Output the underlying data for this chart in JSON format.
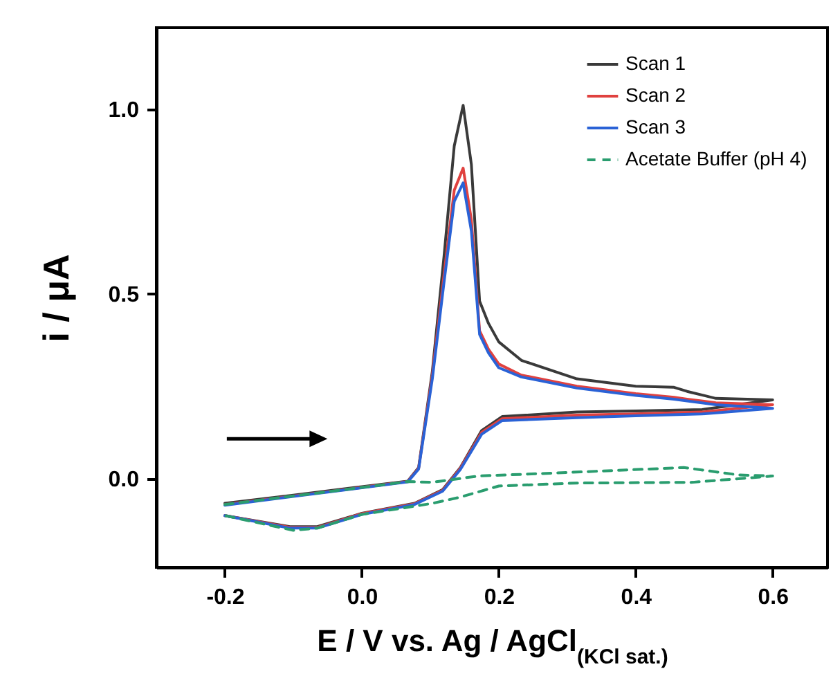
{
  "chart_data": {
    "type": "line",
    "xlabel": "E / V vs. Ag / AgCl$_{(KCl sat.)}$",
    "ylabel": "i / μA",
    "xlim": [
      -0.3,
      0.68
    ],
    "xticks": [
      -0.2,
      {
        "value": 0,
        "label": "0.0"
      },
      0.2,
      0.4,
      0.6
    ],
    "ylim": [
      -0.24,
      1.22
    ],
    "yticks": [
      {
        "value": 0,
        "label": "0.0"
      },
      0.5,
      {
        "value": 1,
        "label": "1.0"
      }
    ],
    "legend": "top right",
    "grid": false,
    "series": [
      {
        "name": "Scan 1",
        "color": "#3a3a3a",
        "line_style": "solid",
        "x": [
          -0.2,
          -0.1,
          0.0,
          0.067,
          0.083,
          0.103,
          0.12,
          0.135,
          0.148,
          0.16,
          0.172,
          0.185,
          0.2,
          0.233,
          0.314,
          0.4,
          0.456,
          0.475,
          0.517,
          0.6,
          0.497,
          0.4,
          0.314,
          0.205,
          0.175,
          0.144,
          0.118,
          0.077,
          0.0,
          -0.065,
          -0.105,
          -0.2
        ],
        "values": [
          -0.067,
          -0.045,
          -0.022,
          -0.007,
          0.03,
          0.29,
          0.6,
          0.9,
          1.01,
          0.85,
          0.48,
          0.42,
          0.37,
          0.32,
          0.27,
          0.25,
          0.247,
          0.236,
          0.217,
          0.213,
          0.187,
          0.183,
          0.18,
          0.168,
          0.13,
          0.03,
          -0.03,
          -0.067,
          -0.094,
          -0.13,
          -0.13,
          -0.1
        ]
      },
      {
        "name": "Scan 2",
        "color": "#e0413f",
        "line_style": "solid",
        "x": [
          -0.2,
          -0.1,
          0.0,
          0.067,
          0.083,
          0.103,
          0.12,
          0.135,
          0.148,
          0.16,
          0.172,
          0.185,
          0.2,
          0.233,
          0.314,
          0.4,
          0.456,
          0.475,
          0.517,
          0.6,
          0.497,
          0.4,
          0.314,
          0.205,
          0.175,
          0.144,
          0.118,
          0.077,
          0.0,
          -0.065,
          -0.105,
          -0.2
        ],
        "values": [
          -0.07,
          -0.047,
          -0.024,
          -0.008,
          0.028,
          0.28,
          0.55,
          0.78,
          0.84,
          0.7,
          0.4,
          0.35,
          0.31,
          0.28,
          0.25,
          0.23,
          0.22,
          0.215,
          0.205,
          0.2,
          0.18,
          0.175,
          0.172,
          0.162,
          0.125,
          0.028,
          -0.032,
          -0.068,
          -0.095,
          -0.132,
          -0.132,
          -0.1
        ]
      },
      {
        "name": "Scan 3",
        "color": "#2a62d6",
        "line_style": "solid",
        "x": [
          -0.2,
          -0.1,
          0.0,
          0.067,
          0.083,
          0.103,
          0.12,
          0.135,
          0.148,
          0.16,
          0.172,
          0.185,
          0.2,
          0.233,
          0.314,
          0.4,
          0.456,
          0.475,
          0.517,
          0.6,
          0.497,
          0.4,
          0.314,
          0.205,
          0.175,
          0.144,
          0.118,
          0.077,
          0.0,
          -0.065,
          -0.105,
          -0.2
        ],
        "values": [
          -0.072,
          -0.048,
          -0.025,
          -0.009,
          0.026,
          0.27,
          0.53,
          0.75,
          0.8,
          0.67,
          0.39,
          0.34,
          0.3,
          0.275,
          0.245,
          0.225,
          0.215,
          0.21,
          0.2,
          0.19,
          0.175,
          0.17,
          0.165,
          0.157,
          0.12,
          0.025,
          -0.034,
          -0.07,
          -0.097,
          -0.134,
          -0.134,
          -0.1
        ]
      },
      {
        "name": "Acetate Buffer (pH 4)",
        "color": "#2a9d6f",
        "line_style": "dashed",
        "x": [
          -0.2,
          -0.1,
          0.0,
          0.067,
          0.103,
          0.17,
          0.28,
          0.47,
          0.55,
          0.6,
          0.483,
          0.314,
          0.2,
          0.144,
          0.103,
          0.0,
          -0.065,
          -0.1,
          -0.2
        ],
        "values": [
          -0.07,
          -0.047,
          -0.024,
          -0.008,
          -0.01,
          0.007,
          0.015,
          0.03,
          0.01,
          0.007,
          -0.01,
          -0.012,
          -0.02,
          -0.05,
          -0.067,
          -0.097,
          -0.134,
          -0.14,
          -0.1
        ]
      }
    ]
  }
}
